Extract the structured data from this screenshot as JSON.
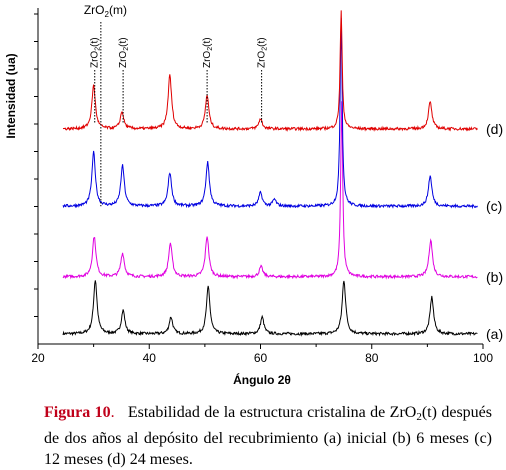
{
  "chart_data": {
    "type": "line",
    "xlabel": "Ángulo 2θ",
    "ylabel": "Intensidad (ua)",
    "xlim": [
      20,
      100
    ],
    "x_ticks": [
      20,
      40,
      60,
      80,
      100
    ],
    "grid": false,
    "series": [
      {
        "name": "(a)",
        "color": "#000000",
        "baseline": 0.03,
        "peaks": [
          [
            30.3,
            0.16
          ],
          [
            35.3,
            0.07
          ],
          [
            43.9,
            0.05
          ],
          [
            50.6,
            0.14
          ],
          [
            60.3,
            0.05
          ],
          [
            75.0,
            0.16
          ],
          [
            90.8,
            0.11
          ]
        ]
      },
      {
        "name": "(b)",
        "color": "#e000e0",
        "baseline": 0.2,
        "peaks": [
          [
            30.1,
            0.12
          ],
          [
            35.2,
            0.07
          ],
          [
            43.8,
            0.1
          ],
          [
            50.4,
            0.12
          ],
          [
            60.1,
            0.03
          ],
          [
            74.6,
            0.52
          ],
          [
            90.6,
            0.11
          ]
        ]
      },
      {
        "name": "(c)",
        "color": "#0000e0",
        "baseline": 0.41,
        "peaks": [
          [
            30.0,
            0.16
          ],
          [
            35.2,
            0.12
          ],
          [
            43.7,
            0.1
          ],
          [
            50.5,
            0.13
          ],
          [
            60.0,
            0.04
          ],
          [
            62.5,
            0.02
          ],
          [
            74.5,
            0.56
          ],
          [
            90.5,
            0.09
          ]
        ]
      },
      {
        "name": "(d)",
        "color": "#e00000",
        "baseline": 0.64,
        "peaks": [
          [
            30.0,
            0.13
          ],
          [
            35.1,
            0.05
          ],
          [
            43.7,
            0.16
          ],
          [
            50.4,
            0.1
          ],
          [
            60.0,
            0.03
          ],
          [
            74.5,
            0.35
          ],
          [
            90.5,
            0.08
          ]
        ]
      }
    ],
    "annotations": [
      {
        "text": "ZrO",
        "sub": "2",
        "suffix": "(t)",
        "x": 30.2,
        "orientation": "vertical"
      },
      {
        "text": "ZrO",
        "sub": "2",
        "suffix": "(t)",
        "x": 35.3,
        "orientation": "vertical"
      },
      {
        "text": "ZrO",
        "sub": "2",
        "suffix": "(t)",
        "x": 50.4,
        "orientation": "vertical"
      },
      {
        "text": "ZrO",
        "sub": "2",
        "suffix": "(t)",
        "x": 60.2,
        "orientation": "vertical"
      },
      {
        "text": "ZrO",
        "sub": "2",
        "suffix": "(m)",
        "x": 31.3,
        "orientation": "horizontal"
      }
    ]
  },
  "caption": {
    "label": "Figura 10",
    "title": ".",
    "text_1": "Estabilidad de la estructura cristalina de ZrO",
    "sub": "2",
    "text_2": "(t) después de dos años al depósito del recubrimiento (a) inicial (b) 6 meses (c) 12 meses (d) 24 meses."
  }
}
